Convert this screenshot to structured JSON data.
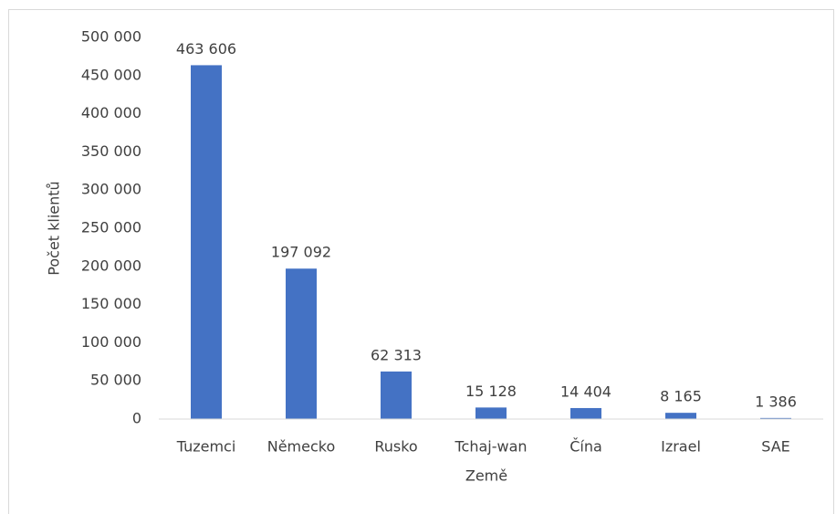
{
  "chart_data": {
    "type": "bar",
    "x_label": "Země",
    "y_label": "Počet klientů",
    "categories": [
      "Tuzemci",
      "Německo",
      "Rusko",
      "Tchaj-wan",
      "Čína",
      "Izrael",
      "SAE"
    ],
    "values": [
      463606,
      197092,
      62313,
      15128,
      14404,
      8165,
      1386
    ],
    "value_labels": [
      "463 606",
      "197 092",
      "62 313",
      "15 128",
      "14 404",
      "8 165",
      "1 386"
    ],
    "color": "#4472c4",
    "ylim": [
      0,
      500000
    ],
    "yticks": [
      0,
      {
        "value": 50000,
        "label": "50 000"
      },
      {
        "value": 100000,
        "label": "100 000"
      },
      {
        "value": 150000,
        "label": "150 000"
      },
      {
        "value": 200000,
        "label": "200 000"
      },
      {
        "value": 250000,
        "label": "250 000"
      },
      {
        "value": 300000,
        "label": "300 000"
      },
      {
        "value": 350000,
        "label": "350 000"
      },
      {
        "value": 400000,
        "label": "400 000"
      },
      {
        "value": 450000,
        "label": "450 000"
      },
      {
        "value": 500000,
        "label": "500 000"
      }
    ],
    "grid": false
  }
}
